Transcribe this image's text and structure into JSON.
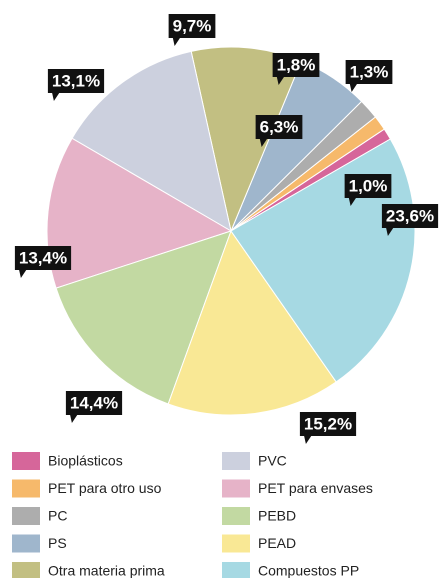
{
  "chart_data": {
    "type": "pie",
    "categories": [
      "Bioplásticos",
      "PET para otro uso",
      "PC",
      "PS",
      "Otra materia prima",
      "PVC",
      "PET para envases",
      "PEBD",
      "PEAD",
      "Compuestos PP"
    ],
    "values": [
      1.0,
      1.3,
      1.8,
      6.3,
      9.7,
      13.1,
      13.4,
      14.4,
      15.2,
      23.6
    ],
    "value_labels": [
      "1,0%",
      "1,3%",
      "1,8%",
      "6,3%",
      "9,7%",
      "13,1%",
      "13,4%",
      "14,4%",
      "15,2%",
      "23,6%"
    ],
    "colors": [
      "#d6669a",
      "#f6b96b",
      "#adadad",
      "#9fb6cc",
      "#c2bf82",
      "#ccd0de",
      "#e6b3c8",
      "#c2d9a2",
      "#f9e895",
      "#a6d9e3"
    ],
    "legend": "bottom"
  }
}
